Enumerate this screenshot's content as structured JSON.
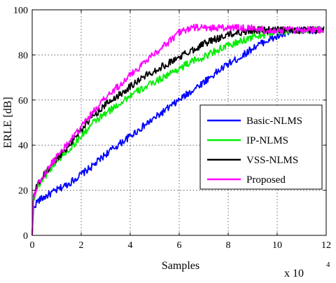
{
  "chart_data": {
    "type": "line",
    "xlabel": "Samples",
    "ylabel": "ERLE [dB]",
    "x_multiplier_label": "x 10",
    "x_multiplier_exponent": "4",
    "xlim": [
      0,
      12
    ],
    "ylim": [
      0,
      100
    ],
    "xticks": [
      "0",
      "2",
      "4",
      "6",
      "8",
      "10",
      "12"
    ],
    "yticks": [
      "0",
      "20",
      "40",
      "60",
      "80",
      "100"
    ],
    "grid": true,
    "legend_position": "right",
    "series": [
      {
        "name": "Basic-NLMS",
        "color": "#0000ff",
        "x": [
          0,
          0.05,
          0.2,
          0.5,
          1,
          1.5,
          2,
          2.5,
          3,
          3.5,
          4,
          4.5,
          5,
          5.5,
          6,
          6.5,
          7,
          7.5,
          8,
          8.5,
          9,
          9.5,
          10,
          10.5,
          11,
          11.5,
          12
        ],
        "y": [
          0,
          12,
          15,
          17,
          20,
          23,
          27,
          31,
          36,
          40,
          44,
          48,
          52,
          56,
          60,
          64,
          68,
          72,
          76,
          79,
          83,
          86,
          88,
          90,
          91,
          91,
          91
        ]
      },
      {
        "name": "IP-NLMS",
        "color": "#00ee00",
        "x": [
          0,
          0.05,
          0.2,
          0.5,
          1,
          1.5,
          2,
          2.5,
          3,
          3.5,
          4,
          4.5,
          5,
          5.5,
          6,
          6.5,
          7,
          7.5,
          8,
          8.5,
          9,
          9.5,
          10,
          10.5,
          11,
          11.5,
          12
        ],
        "y": [
          0,
          16,
          21,
          26,
          33,
          38,
          44,
          50,
          54,
          58,
          62,
          65,
          68,
          71,
          74,
          77,
          79,
          82,
          84,
          86,
          88,
          89,
          90,
          91,
          91,
          91,
          91
        ]
      },
      {
        "name": "VSS-NLMS",
        "color": "#000000",
        "x": [
          0,
          0.05,
          0.2,
          0.5,
          1,
          1.5,
          2,
          2.5,
          3,
          3.5,
          4,
          4.5,
          5,
          5.5,
          6,
          6.5,
          7,
          7.5,
          8,
          8.5,
          9,
          9.5,
          10,
          10.5,
          11,
          11.5,
          12
        ],
        "y": [
          0,
          17,
          22,
          27,
          34,
          40,
          47,
          53,
          58,
          62,
          66,
          70,
          73,
          76,
          79,
          82,
          85,
          87,
          89,
          90,
          91,
          91,
          91,
          91,
          91,
          91,
          91
        ]
      },
      {
        "name": "Proposed",
        "color": "#ff00ff",
        "x": [
          0,
          0.05,
          0.2,
          0.5,
          1,
          1.5,
          2,
          2.5,
          3,
          3.5,
          4,
          4.5,
          5,
          5.5,
          6,
          6.5,
          7,
          7.5,
          8,
          8.5,
          9,
          9.5,
          10,
          10.5,
          11,
          11.5,
          12
        ],
        "y": [
          0,
          17,
          22,
          27,
          35,
          41,
          48,
          55,
          61,
          66,
          71,
          76,
          81,
          85,
          90,
          92,
          92,
          92,
          92,
          92,
          92,
          91,
          91,
          91,
          91,
          91,
          91
        ]
      }
    ]
  }
}
